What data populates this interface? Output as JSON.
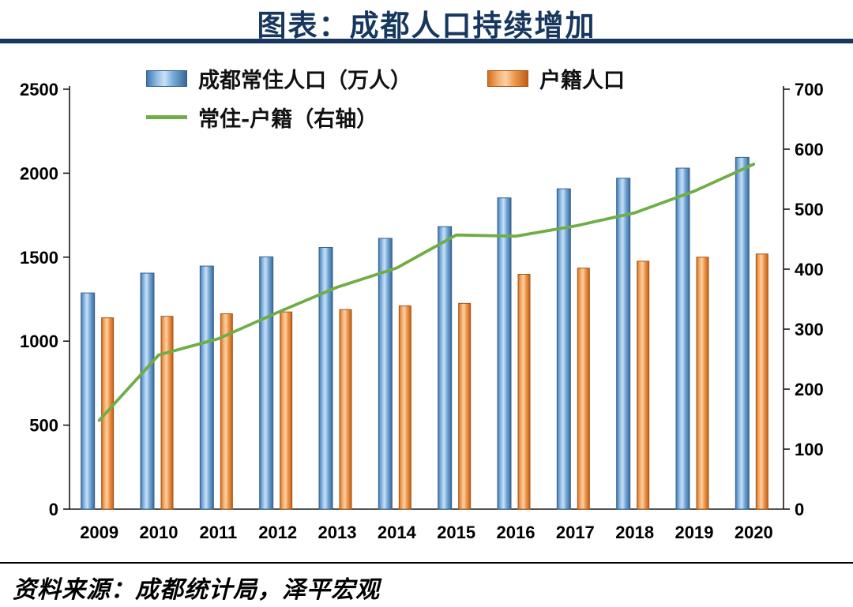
{
  "page": {
    "title": "图表：成都人口持续增加",
    "source": "资料来源：成都统计局，泽平宏观"
  },
  "legend": {
    "resident": "成都常住人口（万人）",
    "registered": "户籍人口",
    "diff": "常住-户籍（右轴）"
  },
  "colors": {
    "navy": "#17375E",
    "bar_blue": "#5B9BD5",
    "bar_blue_border": "#35618F",
    "bar_orange": "#ED7D31",
    "bar_orange_border": "#A65512",
    "line_green": "#70AD47",
    "axis_black": "#1a1a1a"
  },
  "chart_data": {
    "type": "bar",
    "title": "图表：成都人口持续增加",
    "categories": [
      "2009",
      "2010",
      "2011",
      "2012",
      "2013",
      "2014",
      "2015",
      "2016",
      "2017",
      "2018",
      "2019",
      "2020"
    ],
    "series": [
      {
        "name": "成都常住人口（万人）",
        "type": "bar",
        "axis": "left",
        "values": [
          1287,
          1405,
          1447,
          1502,
          1558,
          1612,
          1682,
          1853,
          1907,
          1970,
          2030,
          2094
        ]
      },
      {
        "name": "户籍人口",
        "type": "bar",
        "axis": "left",
        "values": [
          1139,
          1148,
          1163,
          1174,
          1188,
          1210,
          1225,
          1398,
          1435,
          1476,
          1500,
          1519
        ]
      },
      {
        "name": "常住-户籍（右轴）",
        "type": "line",
        "axis": "right",
        "values": [
          148,
          257,
          284,
          328,
          370,
          402,
          457,
          455,
          472,
          494,
          530,
          575
        ]
      }
    ],
    "left_axis": {
      "min": 0,
      "max": 2500,
      "step": 500,
      "ticks": [
        "0",
        "500",
        "1000",
        "1500",
        "2000",
        "2500"
      ]
    },
    "right_axis": {
      "min": 0,
      "max": 700,
      "step": 100,
      "ticks": [
        "0",
        "100",
        "200",
        "300",
        "400",
        "500",
        "600",
        "700"
      ]
    },
    "legend_position": "top",
    "grid": false
  }
}
